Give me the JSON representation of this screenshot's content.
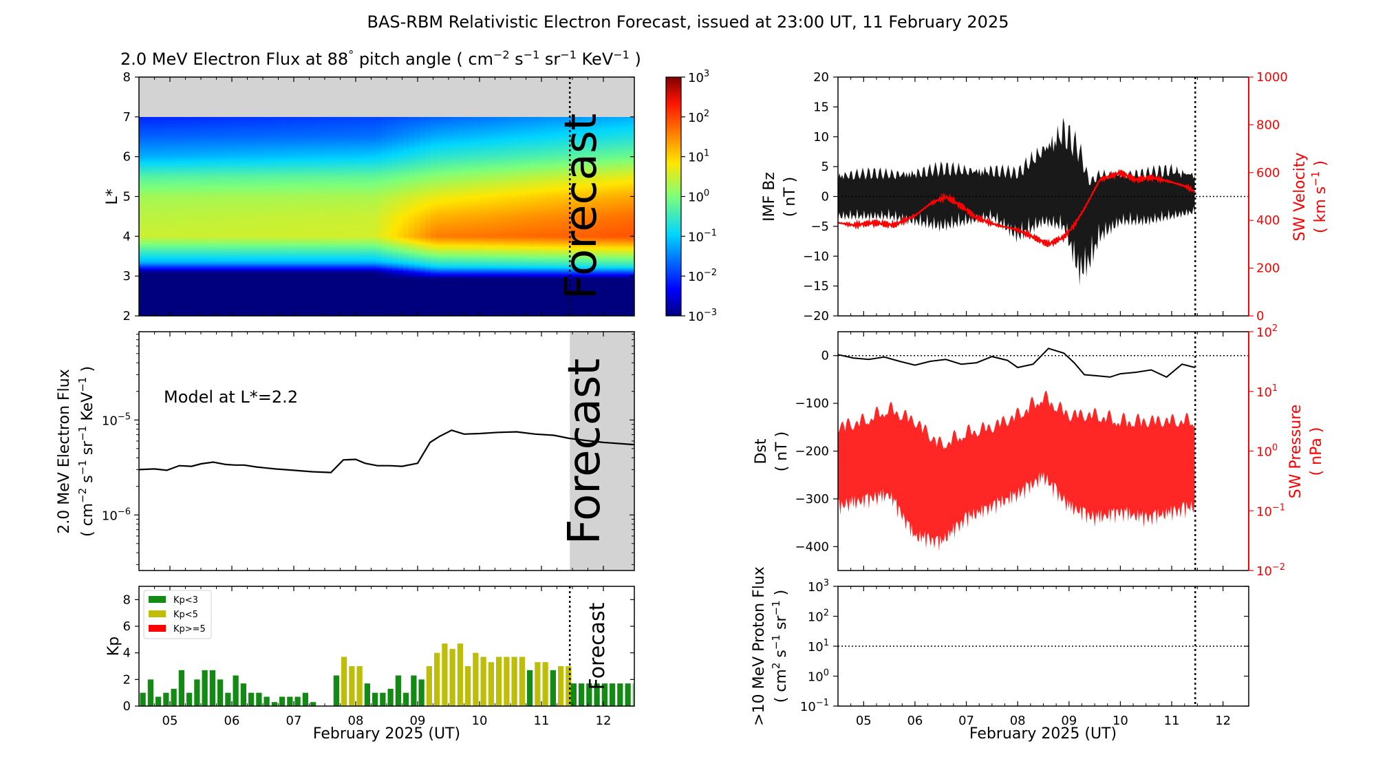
{
  "title": "BAS-RBM Relativistic Electron Forecast, issued at 23:00 UT, 11 February 2025",
  "colors": {
    "observed_line": "#000000",
    "solar_wind": "#ff0000",
    "kp_low": "#138a13",
    "kp_mid": "#bdbd0a",
    "kp_high": "#ff0000",
    "forecast_shade": "#d3d3d3",
    "data_gap": "#d3d3d3"
  },
  "common": {
    "xlabel": "February 2025 (UT)",
    "x_range": [
      4.5,
      12.5
    ],
    "forecast_start": 11.458,
    "days": [
      "05",
      "06",
      "07",
      "08",
      "09",
      "10",
      "11",
      "12"
    ],
    "forecast_label": "Forecast"
  },
  "chart_data": [
    {
      "id": "flux_spectrogram",
      "type": "heatmap",
      "title_pre": "2.0 MeV Electron Flux at 88",
      "title_deg": "°",
      "title_mid": " pitch angle ( cm",
      "title_post": " KeV",
      "title_close": " )",
      "exp_m2": "−2",
      "exp_m1": "−1",
      "unit_s": " s",
      "unit_sr": " sr",
      "ylabel": "L*",
      "yticks": [
        "2",
        "3",
        "4",
        "5",
        "6",
        "7",
        "8"
      ],
      "ylim": [
        2,
        8
      ],
      "colorbar_base": "10",
      "colorbar_exponents": [
        "−3",
        "−2",
        "−1",
        "0",
        "1",
        "2",
        "3"
      ],
      "colorbar_range_log10": [
        -3,
        3
      ],
      "data_gap_above_L": 7,
      "log10_flux_profiles": [
        {
          "t": 4.5,
          "L": [
            2,
            3.1,
            3.35,
            4,
            4.5,
            5,
            5.5,
            6,
            6.5,
            7
          ],
          "v": [
            -3,
            -3,
            -1.2,
            0.5,
            0.4,
            0.25,
            -0.3,
            -1.2,
            -1.7,
            -2.1
          ]
        },
        {
          "t": 8.3,
          "L": [
            2,
            3.1,
            3.35,
            4,
            4.5,
            5,
            5.5,
            6,
            6.5,
            7
          ],
          "v": [
            -3,
            -3,
            -1.2,
            0.55,
            0.5,
            0.3,
            -0.2,
            -1.0,
            -1.6,
            -1.9
          ]
        },
        {
          "t": 9.3,
          "L": [
            2,
            2.95,
            3.25,
            4,
            4.5,
            5,
            5.5,
            6,
            6.5,
            7
          ],
          "v": [
            -3,
            -3,
            -0.9,
            1.6,
            1.2,
            0.7,
            0.1,
            -0.6,
            -1.2,
            -1.7
          ]
        },
        {
          "t": 12.5,
          "L": [
            2,
            2.95,
            3.25,
            4,
            4.5,
            5,
            5.5,
            6,
            6.5,
            7
          ],
          "v": [
            -3,
            -3,
            -0.7,
            1.9,
            1.7,
            1.3,
            0.7,
            -0.1,
            -0.7,
            -1.2
          ]
        }
      ]
    },
    {
      "id": "flux_at_L",
      "type": "line",
      "annotation": "Model at L*=2.2",
      "ylabel_line1": "2.0 MeV Electron Flux",
      "ylabel_line2_pre": "( cm",
      "ylabel_line2_post": " KeV",
      "ylabel_close": " )",
      "yscale": "log",
      "ylim": [
        2.6e-07,
        8.5e-05
      ],
      "ytick_base": "10",
      "ytick_exponents": [
        "−6",
        "−5"
      ],
      "ytick_values": [
        1e-06,
        1e-05
      ],
      "x": [
        4.5,
        4.75,
        4.95,
        5.15,
        5.35,
        5.5,
        5.7,
        5.9,
        6.05,
        6.2,
        6.4,
        6.7,
        7.0,
        7.3,
        7.6,
        7.8,
        8.0,
        8.15,
        8.35,
        8.55,
        8.75,
        9.0,
        9.2,
        9.35,
        9.55,
        9.75,
        10.0,
        10.3,
        10.6,
        10.9,
        11.2,
        11.45,
        11.7,
        12.0,
        12.5
      ],
      "y": [
        3e-06,
        3.05e-06,
        2.95e-06,
        3.3e-06,
        3.25e-06,
        3.45e-06,
        3.6e-06,
        3.4e-06,
        3.35e-06,
        3.35e-06,
        3.2e-06,
        3.05e-06,
        2.95e-06,
        2.85e-06,
        2.8e-06,
        3.8e-06,
        3.85e-06,
        3.5e-06,
        3.3e-06,
        3.3e-06,
        3.25e-06,
        3.5e-06,
        5.8e-06,
        6.7e-06,
        7.8e-06,
        7.1e-06,
        7.2e-06,
        7.4e-06,
        7.5e-06,
        7.1e-06,
        6.9e-06,
        6.4e-06,
        6.1e-06,
        5.8e-06,
        5.5e-06
      ]
    },
    {
      "id": "kp",
      "type": "bar",
      "ylabel": "Kp",
      "ylim": [
        0,
        9
      ],
      "yticks": [
        "0",
        "2",
        "4",
        "6",
        "8"
      ],
      "bar_width_days": 0.125,
      "legend": [
        "Kp<3",
        "Kp<5",
        "Kp>=5"
      ],
      "start": 4.5,
      "values": [
        1.0,
        2.0,
        0.7,
        1.0,
        1.3,
        2.7,
        1.0,
        2.0,
        2.7,
        2.7,
        2.0,
        1.0,
        2.3,
        1.7,
        1.0,
        1.0,
        0.7,
        0.3,
        0.7,
        0.7,
        0.7,
        1.0,
        0.3,
        0.0,
        0.0,
        2.3,
        3.7,
        3.0,
        3.0,
        1.7,
        1.0,
        1.0,
        1.3,
        2.3,
        1.0,
        2.3,
        2.0,
        3.0,
        4.0,
        4.7,
        4.3,
        4.7,
        3.0,
        4.0,
        3.7,
        3.3,
        3.7,
        3.7,
        3.7,
        3.7,
        2.7,
        3.3,
        3.3,
        2.7,
        3.0,
        3.0
      ],
      "forecast_value": 1.7
    },
    {
      "id": "imf_sw",
      "type": "line",
      "ylabel_left": [
        "IMF Bz",
        "( nT )"
      ],
      "ylabel_right_line1": "SW Velocity",
      "ylabel_right_line2_pre": "( km s",
      "ylabel_right_close": " )",
      "ylim_left": [
        -20,
        20
      ],
      "ylim_right": [
        0,
        1000
      ],
      "yticks_left": [
        "−20",
        "−15",
        "−10",
        "−5",
        "0",
        "5",
        "10",
        "15",
        "20"
      ],
      "yticks_right": [
        "0",
        "200",
        "400",
        "600",
        "800",
        "1000"
      ],
      "bz_envelope": {
        "x": [
          4.5,
          5.5,
          6.5,
          7.5,
          8.0,
          8.5,
          8.9,
          9.2,
          9.4,
          9.6,
          10.0,
          10.5,
          11.0,
          11.45
        ],
        "low": [
          -4,
          -4,
          -6,
          -4,
          -8,
          -5,
          -6,
          -15,
          -13,
          -8,
          -5,
          -5,
          -4,
          -3
        ],
        "high": [
          5,
          5,
          6,
          6,
          5,
          11,
          15,
          10,
          3,
          5,
          5,
          5,
          6,
          5
        ]
      },
      "velocity": {
        "x": [
          4.5,
          4.8,
          5.2,
          5.6,
          6.0,
          6.3,
          6.6,
          6.9,
          7.2,
          7.6,
          8.0,
          8.3,
          8.6,
          8.9,
          9.1,
          9.3,
          9.6,
          10.0,
          10.3,
          10.6,
          11.0,
          11.3,
          11.45
        ],
        "y": [
          390,
          380,
          390,
          380,
          420,
          470,
          500,
          460,
          410,
          380,
          360,
          330,
          300,
          330,
          380,
          450,
          570,
          600,
          570,
          580,
          560,
          540,
          520
        ]
      }
    },
    {
      "id": "dst_pressure",
      "type": "line",
      "ylabel_left": [
        "Dst",
        "( nT )"
      ],
      "ylabel_right": [
        "SW Pressure",
        "( nPa )"
      ],
      "ylim_left": [
        -450,
        50
      ],
      "yticks_left": [
        "−400",
        "−300",
        "−200",
        "−100",
        "0"
      ],
      "yscale_right": "log",
      "right_tick_base": "10",
      "right_tick_exponents": [
        "−2",
        "−1",
        "0",
        "1",
        "2"
      ],
      "dst": {
        "x": [
          4.5,
          4.8,
          5.1,
          5.4,
          5.7,
          6.0,
          6.3,
          6.6,
          6.9,
          7.2,
          7.5,
          7.8,
          8.0,
          8.3,
          8.6,
          8.9,
          9.1,
          9.3,
          9.5,
          9.8,
          10.0,
          10.3,
          10.6,
          10.9,
          11.2,
          11.45
        ],
        "y": [
          2,
          -5,
          -8,
          -3,
          -12,
          -20,
          -12,
          -8,
          -18,
          -15,
          -2,
          -10,
          -25,
          -18,
          15,
          5,
          -15,
          -40,
          -42,
          -45,
          -38,
          -35,
          -30,
          -45,
          -18,
          -25
        ]
      },
      "pressure_band": {
        "x": [
          4.5,
          5.0,
          5.5,
          6.0,
          6.5,
          7.0,
          7.5,
          8.0,
          8.5,
          9.0,
          9.5,
          10.0,
          10.5,
          11.0,
          11.45
        ],
        "low_log": [
          -0.8,
          -0.7,
          -0.6,
          -1.3,
          -1.4,
          -1.0,
          -0.8,
          -0.6,
          -0.3,
          -0.8,
          -1.0,
          -0.9,
          -1.0,
          -0.9,
          -0.8
        ],
        "high_log": [
          0.3,
          0.4,
          0.6,
          0.4,
          0.0,
          0.2,
          0.3,
          0.5,
          0.8,
          0.5,
          0.5,
          0.4,
          0.4,
          0.4,
          0.4
        ]
      }
    },
    {
      "id": "proton_flux",
      "type": "line",
      "ylabel_line1": ">10 MeV Proton Flux",
      "ylabel_line2_pre": "( cm",
      "ylabel_line2_post": " sr",
      "ylabel_close": " )",
      "exp_2": "2",
      "yscale": "log",
      "ytick_base": "10",
      "ytick_exponents": [
        "−1",
        "0",
        "1",
        "2",
        "3"
      ],
      "threshold": 10
    }
  ]
}
